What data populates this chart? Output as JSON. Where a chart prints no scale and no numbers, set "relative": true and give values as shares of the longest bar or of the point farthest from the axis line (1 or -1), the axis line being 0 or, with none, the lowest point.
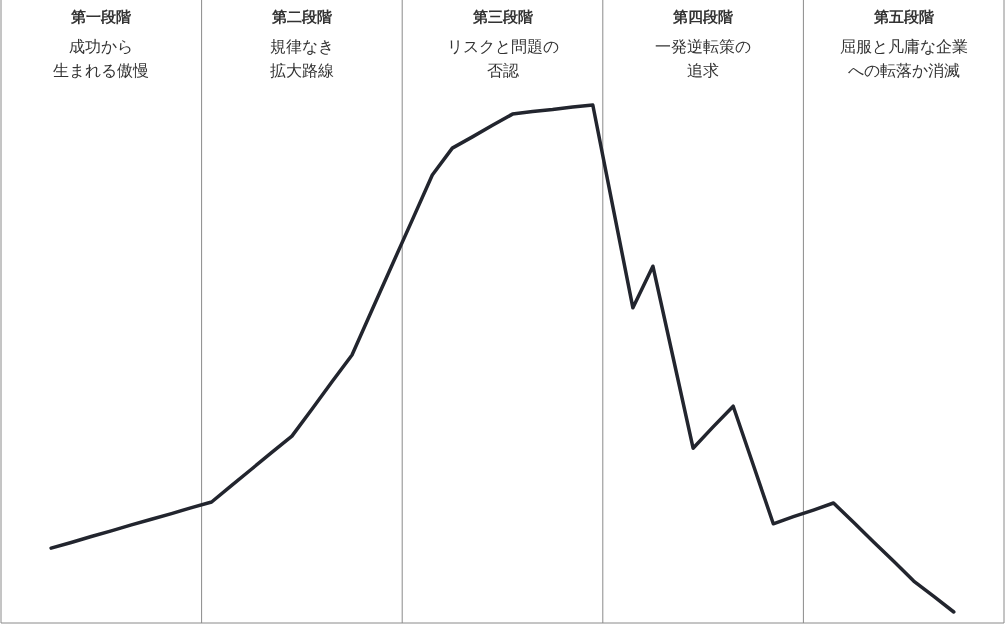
{
  "chart_data": {
    "type": "line",
    "relative": true,
    "color": "#22252e",
    "line_style": "solid",
    "marker": "none",
    "categories": [
      null,
      null,
      null,
      null,
      null,
      null,
      null,
      null,
      null,
      null,
      null,
      null,
      null,
      null,
      null,
      null,
      null,
      null,
      null,
      null,
      null,
      null,
      null,
      null,
      null,
      null,
      null,
      null,
      null,
      null,
      null,
      null,
      null,
      null,
      null,
      null,
      null,
      null,
      null,
      null,
      null,
      null,
      null,
      null,
      null,
      null
    ],
    "values": [
      0.126,
      0.137,
      0.149,
      0.16,
      0.172,
      0.183,
      0.194,
      0.206,
      0.217,
      0.25,
      0.282,
      0.315,
      0.347,
      0.4,
      0.454,
      0.507,
      0.596,
      0.685,
      0.773,
      0.862,
      0.915,
      0.937,
      0.96,
      0.982,
      0.987,
      0.991,
      0.996,
      1,
      0.8,
      0.6,
      0.682,
      0.503,
      0.323,
      0.365,
      0.406,
      0.29,
      0.174,
      0.188,
      0.201,
      0.215,
      0.177,
      0.138,
      0.1,
      0.061,
      0.031,
      0
    ],
    "annotations": [
      "第一段階",
      "成功から",
      "生まれる傲慢",
      "第二段階",
      "規律なき",
      "拡大路線",
      "第三段階",
      "リスクと問題の",
      "否認",
      "第四段階",
      "一発逆転策の",
      "追求",
      "第五段階",
      "屈服と凡庸な企業",
      "への転落か消滅"
    ]
  }
}
